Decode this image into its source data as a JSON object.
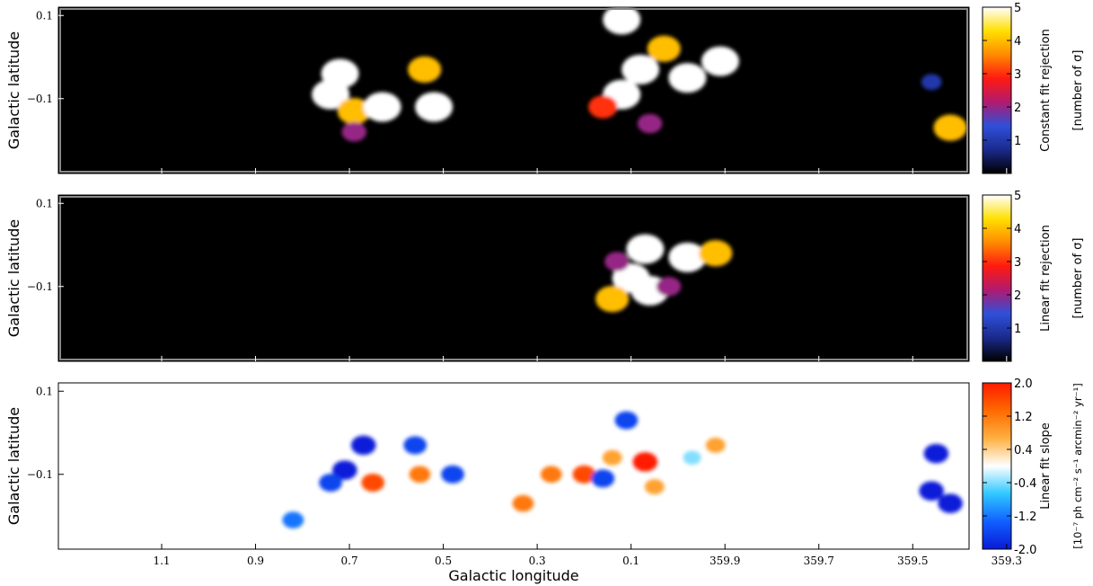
{
  "figure": {
    "xlabel": "Galactic longitude",
    "ylabel": "Galactic latitude"
  },
  "chart_data": [
    {
      "type": "heatmap",
      "panel": "top",
      "background": "#000000",
      "yticks": [
        {
          "value": 0.1,
          "label": "0.1"
        },
        {
          "value": -0.1,
          "label": "−0.1"
        }
      ],
      "colorbar": {
        "label": "Constant fit rejection",
        "unit": "[number of σ]",
        "range": [
          0,
          5
        ],
        "ticks": [
          "1",
          "2",
          "3",
          "4",
          "5"
        ],
        "tick_values": [
          1,
          2,
          3,
          4,
          5
        ],
        "colors": [
          "#000000",
          "#1a2a8c",
          "#2f50d8",
          "#b01a70",
          "#ff1a10",
          "#ff8a00",
          "#ffe000",
          "#ffffff"
        ]
      },
      "blobs": [
        {
          "l": 0.72,
          "b": -0.04,
          "value": 5
        },
        {
          "l": 0.74,
          "b": -0.09,
          "value": 5
        },
        {
          "l": 0.69,
          "b": -0.13,
          "value": 4
        },
        {
          "l": 0.63,
          "b": -0.12,
          "value": 5
        },
        {
          "l": 0.54,
          "b": -0.03,
          "value": 4
        },
        {
          "l": 0.52,
          "b": -0.12,
          "value": 5
        },
        {
          "l": 0.69,
          "b": -0.18,
          "value": 2
        },
        {
          "l": 0.12,
          "b": 0.09,
          "value": 5
        },
        {
          "l": 0.08,
          "b": -0.03,
          "value": 5
        },
        {
          "l": 0.12,
          "b": -0.09,
          "value": 5
        },
        {
          "l": 0.03,
          "b": 0.02,
          "value": 4
        },
        {
          "l": 0.16,
          "b": -0.12,
          "value": 3
        },
        {
          "l": 359.98,
          "b": -0.05,
          "value": 5
        },
        {
          "l": 359.91,
          "b": -0.01,
          "value": 5
        },
        {
          "l": 0.06,
          "b": -0.16,
          "value": 2
        },
        {
          "l": 359.42,
          "b": -0.17,
          "value": 4
        },
        {
          "l": 359.46,
          "b": -0.06,
          "value": 1
        }
      ]
    },
    {
      "type": "heatmap",
      "panel": "middle",
      "background": "#000000",
      "yticks": [
        {
          "value": 0.1,
          "label": "0.1"
        },
        {
          "value": -0.1,
          "label": "−0.1"
        }
      ],
      "colorbar": {
        "label": "Linear fit rejection",
        "unit": "[number of σ]",
        "range": [
          0,
          5
        ],
        "ticks": [
          "1",
          "2",
          "3",
          "4",
          "5"
        ],
        "tick_values": [
          1,
          2,
          3,
          4,
          5
        ],
        "colors": [
          "#000000",
          "#1a2a8c",
          "#2f50d8",
          "#b01a70",
          "#ff1a10",
          "#ff8a00",
          "#ffe000",
          "#ffffff"
        ]
      },
      "blobs": [
        {
          "l": 0.1,
          "b": -0.08,
          "value": 5
        },
        {
          "l": 0.06,
          "b": -0.11,
          "value": 5
        },
        {
          "l": 0.07,
          "b": -0.01,
          "value": 5
        },
        {
          "l": 0.14,
          "b": -0.13,
          "value": 4
        },
        {
          "l": 0.13,
          "b": -0.04,
          "value": 2
        },
        {
          "l": 359.98,
          "b": -0.03,
          "value": 5
        },
        {
          "l": 359.92,
          "b": -0.02,
          "value": 4
        },
        {
          "l": 0.02,
          "b": -0.1,
          "value": 2
        }
      ]
    },
    {
      "type": "heatmap",
      "panel": "bottom",
      "background": "#ffffff",
      "xticks": [
        {
          "value": 1.1,
          "label": "1.1"
        },
        {
          "value": 0.9,
          "label": "0.9"
        },
        {
          "value": 0.7,
          "label": "0.7"
        },
        {
          "value": 0.5,
          "label": "0.5"
        },
        {
          "value": 0.3,
          "label": "0.3"
        },
        {
          "value": 0.1,
          "label": "0.1"
        },
        {
          "value": 359.9,
          "label": "359.9"
        },
        {
          "value": 359.7,
          "label": "359.7"
        },
        {
          "value": 359.5,
          "label": "359.5"
        },
        {
          "value": 359.3,
          "label": "359.3"
        }
      ],
      "yticks": [
        {
          "value": 0.1,
          "label": "0.1"
        },
        {
          "value": -0.1,
          "label": "−0.1"
        }
      ],
      "colorbar": {
        "label": "Linear fit slope",
        "unit": "[10⁻⁷ ph cm⁻² s⁻¹ arcmin⁻² yr⁻¹]",
        "range": [
          -2.0,
          2.0
        ],
        "ticks": [
          "-2.0",
          "-1.2",
          "-0.4",
          "0.4",
          "1.2",
          "2.0"
        ],
        "tick_values": [
          -2.0,
          -1.2,
          -0.4,
          0.4,
          1.2,
          2.0
        ],
        "colors": [
          "#0a1ad8",
          "#1060ff",
          "#30c8ff",
          "#ffffff",
          "#ffb040",
          "#ff6a00",
          "#ff1a00"
        ]
      },
      "blobs": [
        {
          "l": 0.67,
          "b": -0.03,
          "value": -2
        },
        {
          "l": 0.71,
          "b": -0.09,
          "value": -2
        },
        {
          "l": 0.74,
          "b": -0.12,
          "value": -1.6
        },
        {
          "l": 0.65,
          "b": -0.12,
          "value": 1.6
        },
        {
          "l": 0.56,
          "b": -0.03,
          "value": -1.6
        },
        {
          "l": 0.55,
          "b": -0.1,
          "value": 1.2
        },
        {
          "l": 0.48,
          "b": -0.1,
          "value": -1.6
        },
        {
          "l": 0.82,
          "b": -0.21,
          "value": -1.2
        },
        {
          "l": 0.07,
          "b": -0.07,
          "value": 2
        },
        {
          "l": 0.14,
          "b": -0.06,
          "value": 0.8
        },
        {
          "l": 0.2,
          "b": -0.1,
          "value": 1.6
        },
        {
          "l": 0.16,
          "b": -0.11,
          "value": -1.6
        },
        {
          "l": 0.27,
          "b": -0.1,
          "value": 1.2
        },
        {
          "l": 0.33,
          "b": -0.17,
          "value": 1.2
        },
        {
          "l": 0.05,
          "b": -0.13,
          "value": 0.8
        },
        {
          "l": 0.11,
          "b": 0.03,
          "value": -1.6
        },
        {
          "l": 359.92,
          "b": -0.03,
          "value": 0.8
        },
        {
          "l": 359.97,
          "b": -0.06,
          "value": -0.4
        },
        {
          "l": 359.45,
          "b": -0.05,
          "value": -2
        },
        {
          "l": 359.46,
          "b": -0.14,
          "value": -2
        },
        {
          "l": 359.42,
          "b": -0.17,
          "value": -2
        }
      ]
    }
  ]
}
